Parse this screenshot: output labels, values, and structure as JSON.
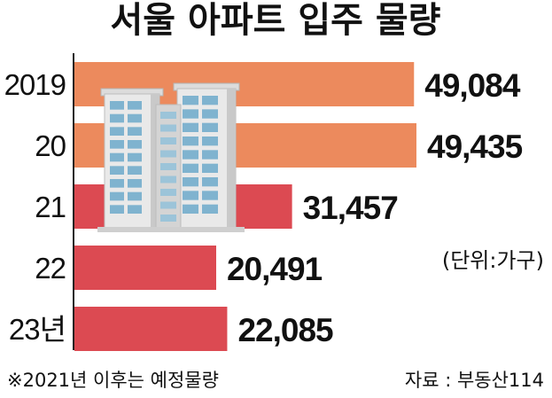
{
  "chart_data": {
    "type": "bar",
    "orientation": "horizontal",
    "title": "서울 아파트 입주 물량",
    "categories": [
      "2019",
      "20",
      "21",
      "22",
      "23년"
    ],
    "values": [
      49084,
      49435,
      31457,
      20491,
      22085
    ],
    "value_labels": [
      "49,084",
      "49,435",
      "31,457",
      "20,491",
      "22,085"
    ],
    "unit_label": "(단위:가구)",
    "footnote": "※2021년 이후는 예정물량",
    "source": "자료 : 부동산114",
    "colors": {
      "actual": "#ec8a5d",
      "planned": "#dc4a52"
    },
    "bar_colors": [
      "actual",
      "actual",
      "planned",
      "planned",
      "planned"
    ],
    "legend": "none",
    "grid": false
  }
}
